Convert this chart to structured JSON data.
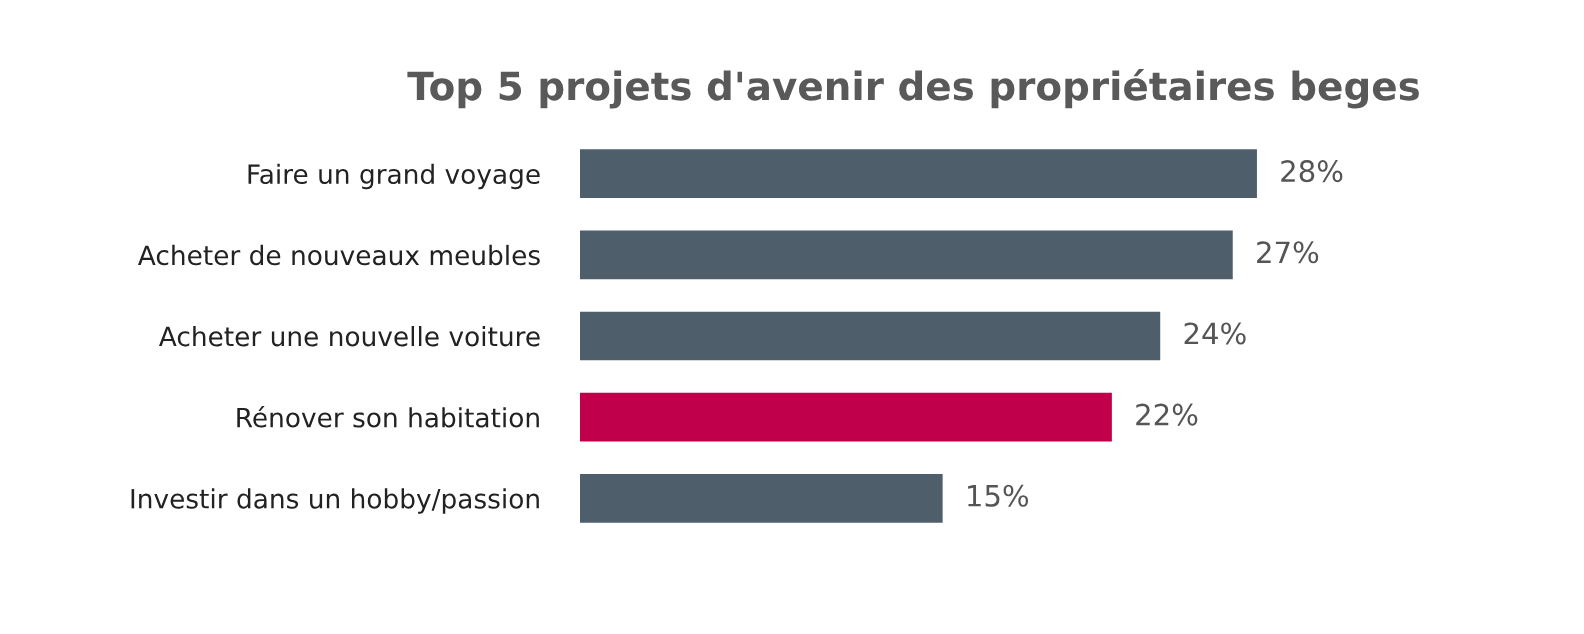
{
  "chart_data": {
    "type": "bar",
    "orientation": "horizontal",
    "title": "Top 5 projets d'avenir des propriétaires beges",
    "categories": [
      "Faire un grand voyage",
      "Acheter de nouveaux meubles",
      "Acheter une nouvelle voiture",
      "Rénover son habitation",
      "Investir dans un hobby/passion"
    ],
    "values": [
      28,
      27,
      24,
      22,
      15
    ],
    "value_labels": [
      "28%",
      "27%",
      "24%",
      "22%",
      "15%"
    ],
    "colors": [
      "#4e5f6b",
      "#4e5f6b",
      "#4e5f6b",
      "#c0004a",
      "#4e5f6b"
    ],
    "grid": false,
    "legend": false
  }
}
